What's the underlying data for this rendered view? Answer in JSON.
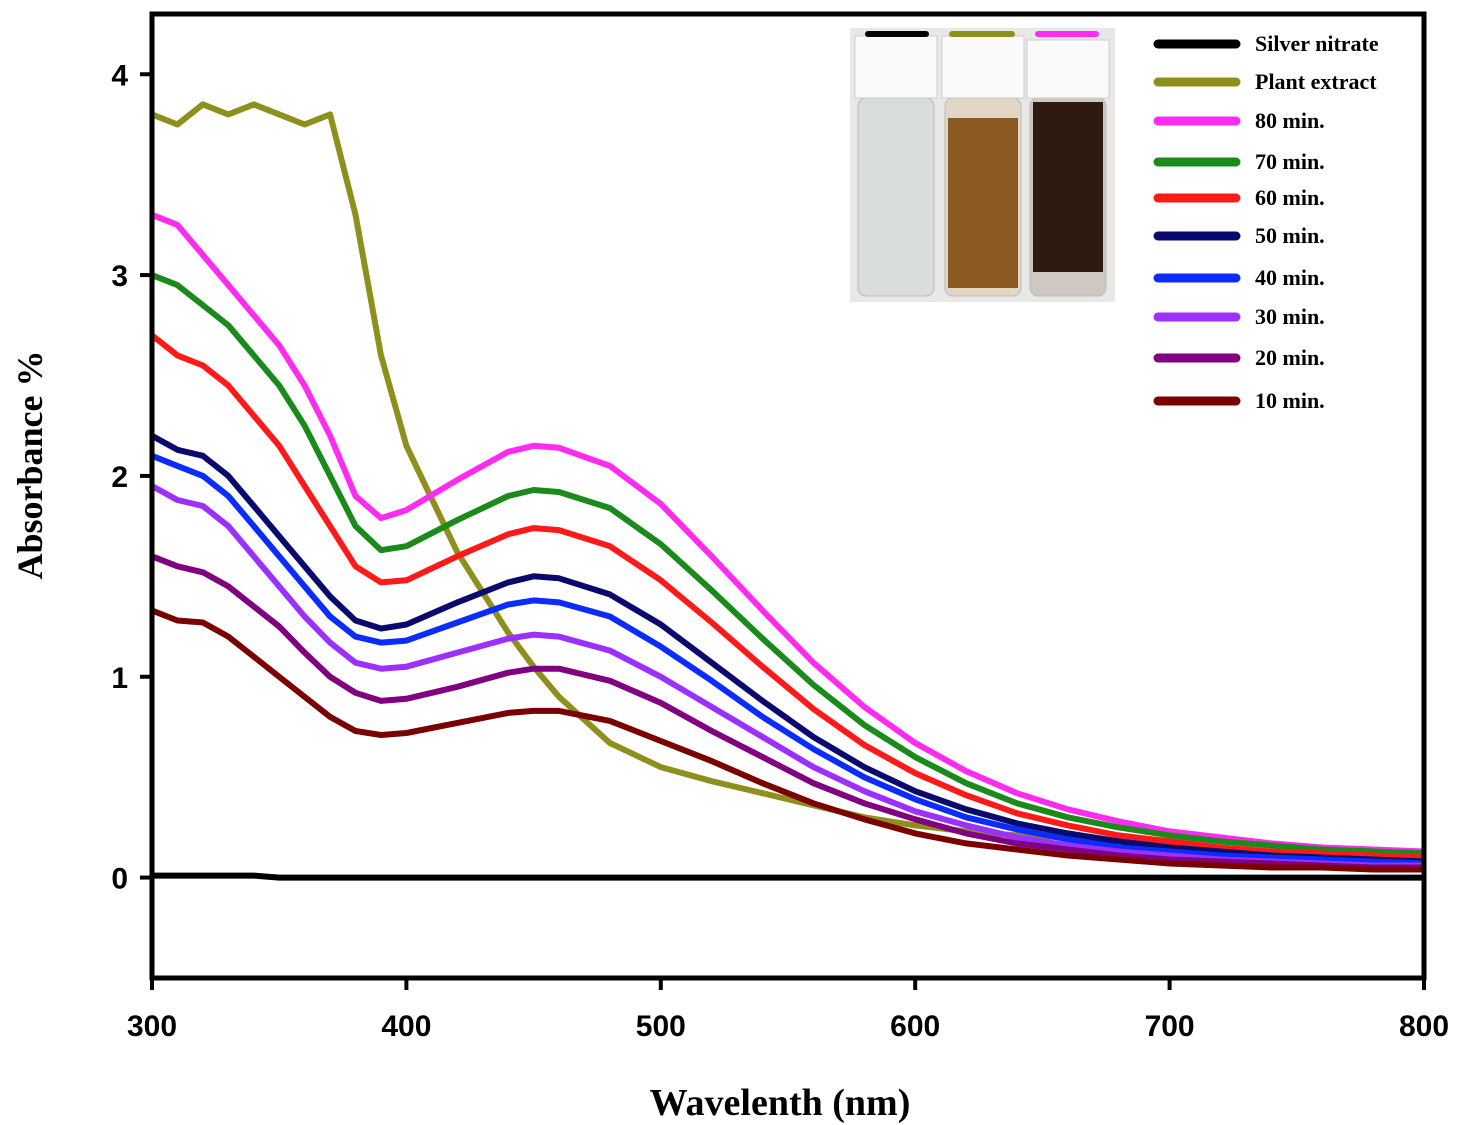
{
  "chart_data": {
    "type": "line",
    "x_label": "Wavelenth (nm)",
    "y_label": "Absorbance %",
    "xlim": [
      300,
      800
    ],
    "ylim": [
      -0.5,
      4.3
    ],
    "xticks": [
      300,
      400,
      500,
      600,
      700,
      800
    ],
    "yticks": [
      0,
      1,
      2,
      3,
      4
    ],
    "legend": "top-right",
    "x": [
      300,
      310,
      320,
      330,
      340,
      350,
      360,
      370,
      380,
      390,
      400,
      420,
      440,
      450,
      460,
      480,
      500,
      520,
      540,
      560,
      580,
      600,
      620,
      640,
      660,
      680,
      700,
      720,
      740,
      760,
      780,
      800
    ],
    "series": [
      {
        "name": "Silver nitrate",
        "color": "#000000",
        "values": [
          0.01,
          0.01,
          0.01,
          0.01,
          0.01,
          0,
          0,
          0,
          0,
          0,
          0,
          0,
          0,
          0,
          0,
          0,
          0,
          0,
          0,
          0,
          0,
          0,
          0,
          0,
          0,
          0,
          0,
          0,
          0,
          0,
          0,
          0
        ]
      },
      {
        "name": "Plant extract",
        "color": "#8f8f1e",
        "values": [
          3.8,
          3.75,
          3.85,
          3.8,
          3.85,
          3.8,
          3.75,
          3.8,
          3.3,
          2.6,
          2.15,
          1.62,
          1.22,
          1.05,
          0.9,
          0.67,
          0.55,
          0.48,
          0.42,
          0.36,
          0.3,
          0.26,
          0.23,
          0.21,
          0.2,
          0.18,
          0.16,
          0.14,
          0.12,
          0.11,
          0.1,
          0.09
        ]
      },
      {
        "name": "80 min.",
        "color": "#ff2bf0",
        "values": [
          3.3,
          3.25,
          3.1,
          2.95,
          2.8,
          2.65,
          2.45,
          2.2,
          1.9,
          1.79,
          1.83,
          1.98,
          2.12,
          2.15,
          2.14,
          2.05,
          1.86,
          1.6,
          1.33,
          1.07,
          0.85,
          0.67,
          0.53,
          0.42,
          0.34,
          0.28,
          0.23,
          0.2,
          0.17,
          0.15,
          0.14,
          0.13
        ]
      },
      {
        "name": "70 min.",
        "color": "#1a8a1a",
        "values": [
          3.0,
          2.95,
          2.85,
          2.75,
          2.6,
          2.45,
          2.25,
          2.0,
          1.75,
          1.63,
          1.65,
          1.78,
          1.9,
          1.93,
          1.92,
          1.84,
          1.66,
          1.43,
          1.19,
          0.96,
          0.76,
          0.6,
          0.47,
          0.37,
          0.3,
          0.25,
          0.21,
          0.18,
          0.16,
          0.14,
          0.13,
          0.12
        ]
      },
      {
        "name": "60 min.",
        "color": "#ff1a1a",
        "values": [
          2.7,
          2.6,
          2.55,
          2.45,
          2.3,
          2.15,
          1.95,
          1.75,
          1.55,
          1.47,
          1.48,
          1.6,
          1.71,
          1.74,
          1.73,
          1.65,
          1.48,
          1.27,
          1.05,
          0.84,
          0.66,
          0.52,
          0.41,
          0.32,
          0.26,
          0.21,
          0.18,
          0.15,
          0.13,
          0.12,
          0.11,
          0.1
        ]
      },
      {
        "name": "50 min.",
        "color": "#0a0a6e",
        "values": [
          2.2,
          2.13,
          2.1,
          2.0,
          1.85,
          1.7,
          1.55,
          1.4,
          1.28,
          1.24,
          1.26,
          1.37,
          1.47,
          1.5,
          1.49,
          1.41,
          1.26,
          1.07,
          0.88,
          0.7,
          0.55,
          0.43,
          0.34,
          0.27,
          0.22,
          0.18,
          0.15,
          0.13,
          0.11,
          0.1,
          0.09,
          0.08
        ]
      },
      {
        "name": "40 min.",
        "color": "#0a2cff",
        "values": [
          2.1,
          2.05,
          2.0,
          1.9,
          1.75,
          1.6,
          1.45,
          1.3,
          1.2,
          1.17,
          1.18,
          1.27,
          1.36,
          1.38,
          1.37,
          1.3,
          1.15,
          0.98,
          0.8,
          0.64,
          0.5,
          0.39,
          0.3,
          0.24,
          0.19,
          0.15,
          0.13,
          0.11,
          0.1,
          0.09,
          0.08,
          0.07
        ]
      },
      {
        "name": "30 min.",
        "color": "#9b30ff",
        "values": [
          1.95,
          1.88,
          1.85,
          1.75,
          1.6,
          1.45,
          1.3,
          1.17,
          1.07,
          1.04,
          1.05,
          1.12,
          1.19,
          1.21,
          1.2,
          1.13,
          1.0,
          0.85,
          0.7,
          0.55,
          0.43,
          0.33,
          0.26,
          0.2,
          0.16,
          0.13,
          0.11,
          0.09,
          0.08,
          0.07,
          0.06,
          0.06
        ]
      },
      {
        "name": "20 min.",
        "color": "#800080",
        "values": [
          1.6,
          1.55,
          1.52,
          1.45,
          1.35,
          1.25,
          1.12,
          1.0,
          0.92,
          0.88,
          0.89,
          0.95,
          1.02,
          1.04,
          1.04,
          0.98,
          0.87,
          0.73,
          0.6,
          0.47,
          0.37,
          0.29,
          0.22,
          0.17,
          0.14,
          0.11,
          0.09,
          0.08,
          0.07,
          0.06,
          0.05,
          0.05
        ]
      },
      {
        "name": "10 min.",
        "color": "#7b0000",
        "values": [
          1.33,
          1.28,
          1.27,
          1.2,
          1.1,
          1.0,
          0.9,
          0.8,
          0.73,
          0.71,
          0.72,
          0.77,
          0.82,
          0.83,
          0.83,
          0.78,
          0.68,
          0.58,
          0.47,
          0.37,
          0.29,
          0.22,
          0.17,
          0.14,
          0.11,
          0.09,
          0.07,
          0.06,
          0.05,
          0.05,
          0.04,
          0.04
        ]
      }
    ]
  }
}
